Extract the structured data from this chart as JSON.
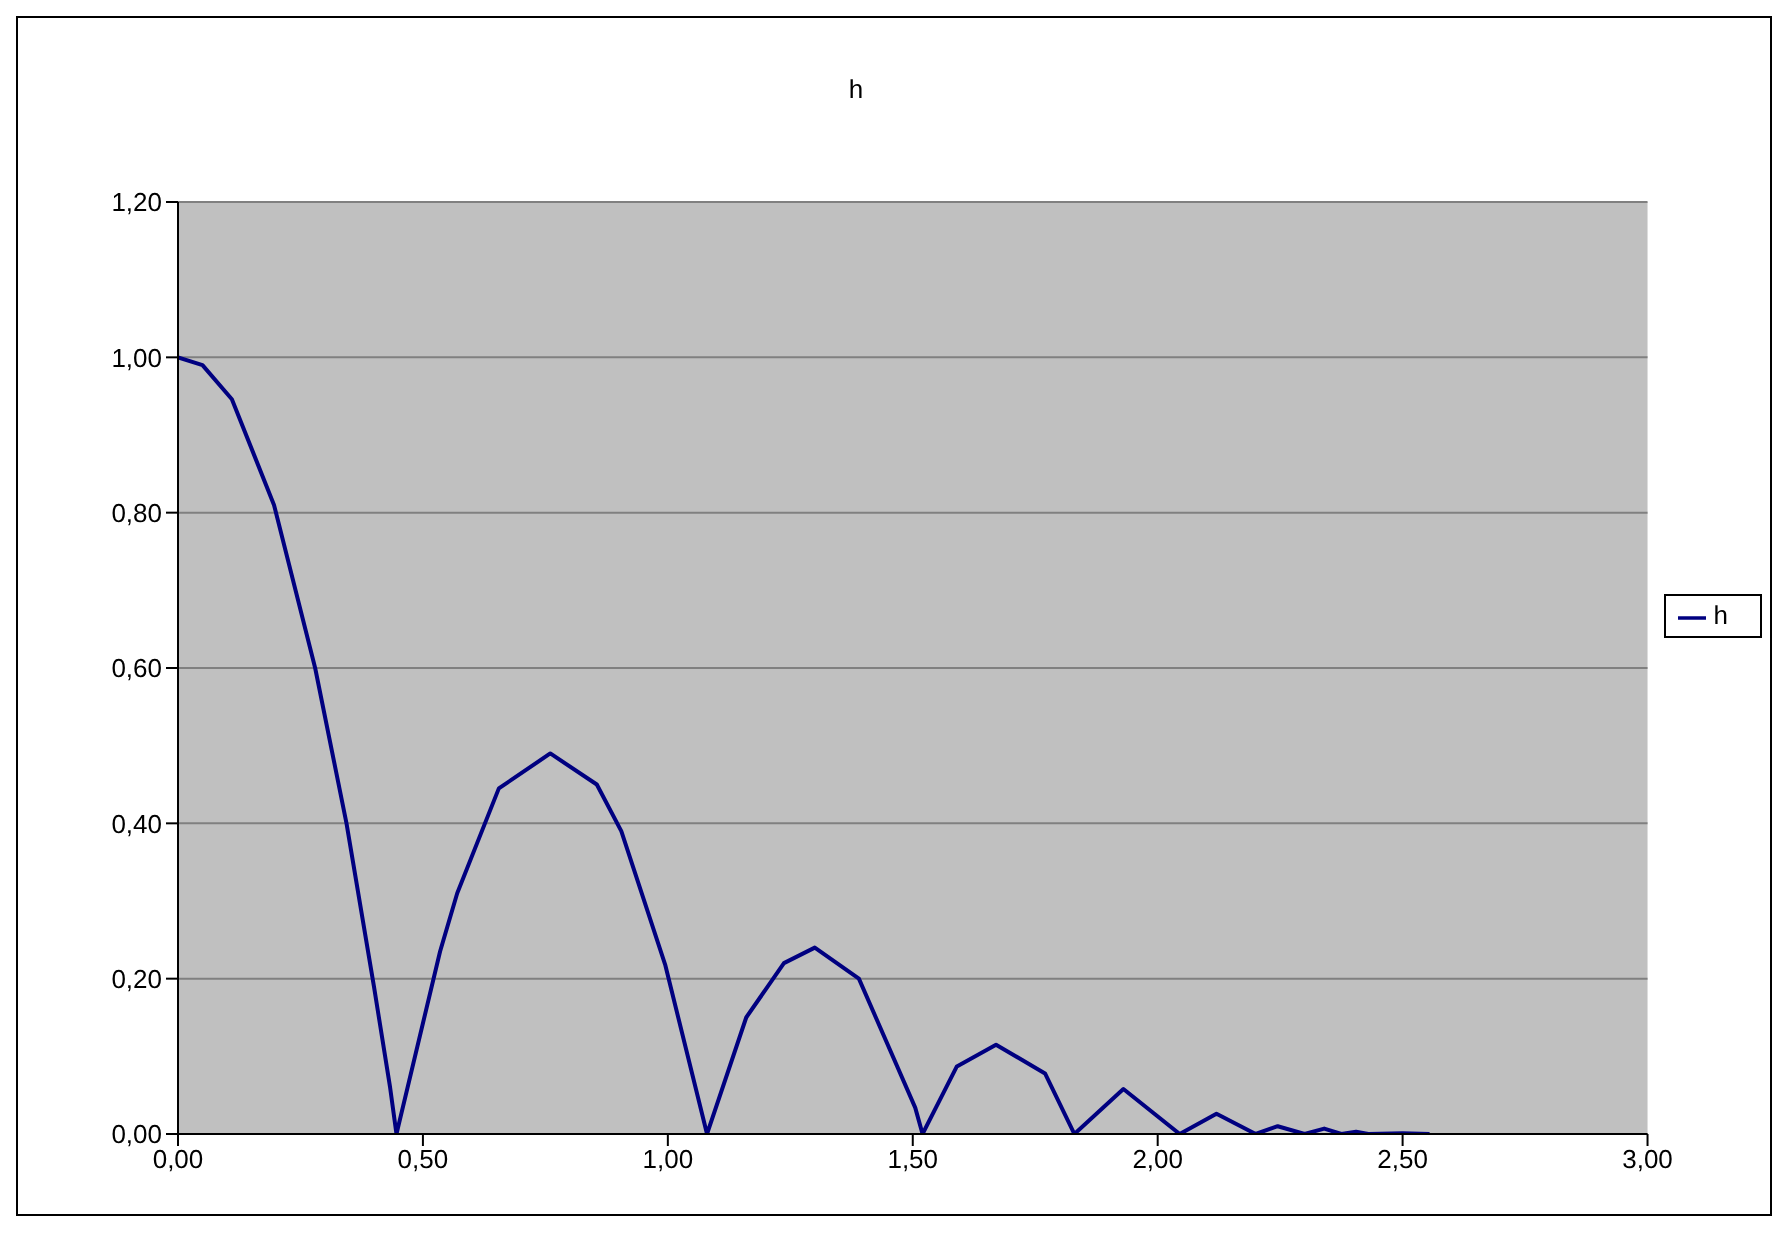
{
  "chart_data": {
    "type": "line",
    "title": "h",
    "x": [
      0,
      0.05,
      0.11,
      0.196,
      0.28,
      0.344,
      0.4,
      0.433,
      0.446,
      0.535,
      0.57,
      0.655,
      0.76,
      0.855,
      0.905,
      0.995,
      1.08,
      1.16,
      1.237,
      1.3,
      1.39,
      1.505,
      1.52,
      1.59,
      1.67,
      1.77,
      1.83,
      1.93,
      2.045,
      2.12,
      2.2,
      2.245,
      2.3,
      2.34,
      2.375,
      2.405,
      2.43,
      2.5,
      2.555
    ],
    "series": [
      {
        "name": "h",
        "color": "#000080",
        "values": [
          1.0,
          0.99,
          0.946,
          0.81,
          0.6,
          0.4,
          0.19,
          0.06,
          0,
          0.235,
          0.31,
          0.445,
          0.49,
          0.45,
          0.39,
          0.217,
          0,
          0.15,
          0.22,
          0.24,
          0.2,
          0.034,
          0,
          0.087,
          0.115,
          0.078,
          0,
          0.058,
          0,
          0.026,
          0,
          0.01,
          0,
          0.007,
          0,
          0.003,
          0,
          0.001,
          0
        ]
      }
    ],
    "xlim": [
      0,
      3
    ],
    "xticks": [
      {
        "value": 0,
        "label": "0,00"
      },
      {
        "value": 0.5,
        "label": "0,50"
      },
      {
        "value": 1,
        "label": "1,00"
      },
      {
        "value": 1.5,
        "label": "1,50"
      },
      {
        "value": 2,
        "label": "2,00"
      },
      {
        "value": 2.5,
        "label": "2,50"
      },
      {
        "value": 3,
        "label": "3,00"
      }
    ],
    "ylim": [
      0,
      1.2
    ],
    "yticks": [
      {
        "value": 0,
        "label": "0,00"
      },
      {
        "value": 0.2,
        "label": "0,20"
      },
      {
        "value": 0.4,
        "label": "0,40"
      },
      {
        "value": 0.6,
        "label": "0,60"
      },
      {
        "value": 0.8,
        "label": "0,80"
      },
      {
        "value": 1,
        "label": "1,00"
      },
      {
        "value": 1.2,
        "label": "1,20"
      }
    ],
    "grid": "y",
    "legend": "right",
    "marker": "none",
    "line_style": "solid"
  }
}
